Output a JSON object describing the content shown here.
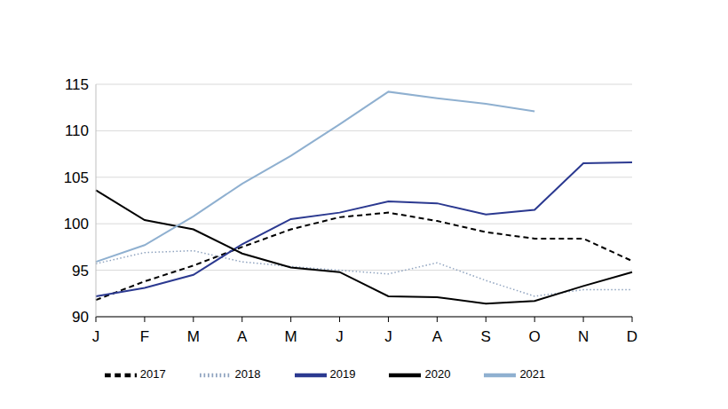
{
  "chart_data": {
    "type": "line",
    "categories": [
      "J",
      "F",
      "M",
      "A",
      "M",
      "J",
      "J",
      "A",
      "S",
      "O",
      "N",
      "D"
    ],
    "series": [
      {
        "name": "2017",
        "color": "#000000",
        "line_style": "dashed",
        "values": [
          91.8,
          93.8,
          95.5,
          97.5,
          99.4,
          100.7,
          101.2,
          100.3,
          99.1,
          98.4,
          98.4,
          96.0
        ]
      },
      {
        "name": "2018",
        "color": "#8fa3bf",
        "line_style": "dotted",
        "values": [
          95.7,
          96.9,
          97.1,
          95.9,
          95.4,
          95.0,
          94.6,
          95.8,
          93.9,
          92.2,
          92.9,
          92.9
        ]
      },
      {
        "name": "2019",
        "color": "#2b3990",
        "line_style": "solid",
        "values": [
          92.2,
          93.1,
          94.5,
          97.8,
          100.5,
          101.2,
          102.4,
          102.2,
          101.0,
          101.5,
          106.5,
          106.6
        ]
      },
      {
        "name": "2020",
        "color": "#000000",
        "line_style": "solid",
        "values": [
          103.6,
          100.4,
          99.4,
          96.8,
          95.3,
          94.8,
          92.2,
          92.1,
          91.4,
          91.7,
          93.3,
          94.8
        ]
      },
      {
        "name": "2021",
        "color": "#8fb0d0",
        "line_style": "solid",
        "values": [
          95.9,
          97.7,
          100.8,
          104.3,
          107.3,
          110.7,
          114.2,
          113.5,
          112.9,
          112.1,
          null,
          null
        ]
      }
    ],
    "ylim": [
      90,
      115
    ],
    "yticks": [
      90,
      95,
      100,
      105,
      110,
      115
    ],
    "grid": true,
    "legend": "bottom"
  }
}
